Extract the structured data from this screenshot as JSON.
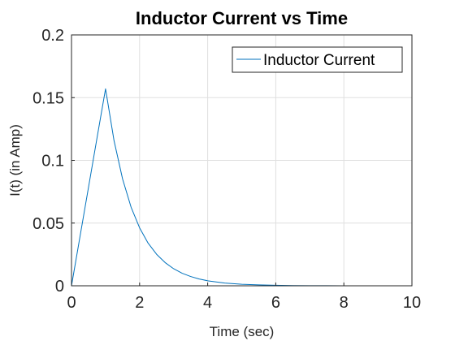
{
  "chart_data": {
    "type": "line",
    "title": "Inductor Current vs Time",
    "xlabel": "Time (sec)",
    "ylabel": "I(t) (in Amp)",
    "xlim": [
      0,
      10
    ],
    "ylim": [
      0,
      0.2
    ],
    "xticks": [
      0,
      2,
      4,
      6,
      8,
      10
    ],
    "yticks": [
      0,
      0.05,
      0.1,
      0.15,
      0.2
    ],
    "xtick_labels": [
      "0",
      "2",
      "4",
      "6",
      "8",
      "10"
    ],
    "ytick_labels": [
      "0",
      "0.05",
      "0.1",
      "0.15",
      "0.2"
    ],
    "grid": true,
    "legend_position": "top-right",
    "series": [
      {
        "name": "Inductor Current",
        "color": "#0072BD",
        "x": [
          0,
          0.25,
          0.5,
          0.75,
          1.0,
          1.25,
          1.5,
          1.75,
          2.0,
          2.25,
          2.5,
          2.75,
          3.0,
          3.25,
          3.5,
          3.75,
          4.0,
          4.5,
          5.0,
          5.5,
          6.0,
          6.5,
          7.0,
          7.5,
          8.0,
          8.5,
          9.0,
          9.5,
          10.0
        ],
        "y": [
          0,
          0.0393,
          0.0786,
          0.1179,
          0.157,
          0.1156,
          0.0852,
          0.0627,
          0.0462,
          0.034,
          0.0251,
          0.0185,
          0.0136,
          0.01,
          0.0074,
          0.0054,
          0.004,
          0.0022,
          0.0012,
          0.0007,
          0.0004,
          0.0002,
          0.0001,
          0.0001,
          0.0,
          0.0,
          0.0,
          0.0,
          0.0
        ]
      }
    ]
  }
}
